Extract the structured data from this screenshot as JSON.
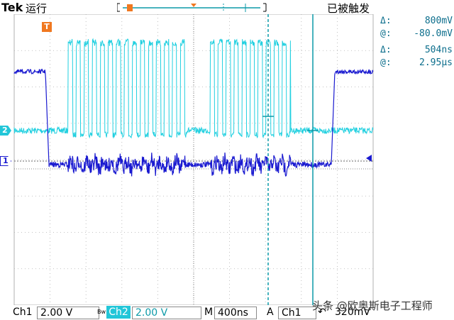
{
  "header": {
    "brand": "Tek",
    "run_state": "运行",
    "trigger_state": "已被触发"
  },
  "cursor_readouts": [
    {
      "symbol": "Δ:",
      "value": "800mV"
    },
    {
      "symbol": "@:",
      "value": "-80.0mV"
    },
    {
      "symbol": "Δ:",
      "value": "504ns"
    },
    {
      "symbol": "@:",
      "value": "2.95µs"
    }
  ],
  "markers": {
    "trigger_marker": "T",
    "ch2_marker": "2",
    "ch1_marker": "1"
  },
  "footer": {
    "ch1_label": "Ch1",
    "ch1_scale": "2.00 V",
    "bw_label": "Bw",
    "ch2_label": "Ch2",
    "ch2_scale": "2.00 V",
    "timebase_label": "M",
    "timebase_value": "400ns",
    "trigger_label": "A",
    "trigger_source": "Ch1",
    "trigger_slope": "↶",
    "trigger_level": "320mV"
  },
  "watermark": "头条 @欧奥斯电子工程师",
  "colors": {
    "ch1": "#1a1ad0",
    "ch2": "#22d0e0",
    "cursor": "#0c9aa8",
    "trigger": "#f07820",
    "grid": "#b0b0b0"
  }
}
